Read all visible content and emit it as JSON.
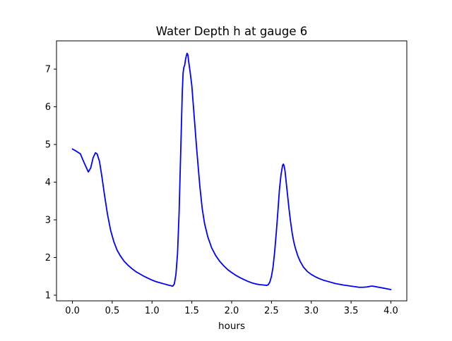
{
  "figure": {
    "background": "#ffffff"
  },
  "chart_data": {
    "type": "line",
    "title": "Water Depth h at gauge 6",
    "xlabel": "hours",
    "ylabel": "",
    "xlim": [
      -0.2,
      4.2
    ],
    "ylim": [
      0.85,
      7.75
    ],
    "xticks": [
      0.0,
      0.5,
      1.0,
      1.5,
      2.0,
      2.5,
      3.0,
      3.5,
      4.0
    ],
    "xtick_labels": [
      "0.0",
      "0.5",
      "1.0",
      "1.5",
      "2.0",
      "2.5",
      "3.0",
      "3.5",
      "4.0"
    ],
    "yticks": [
      1,
      2,
      3,
      4,
      5,
      6,
      7
    ],
    "ytick_labels": [
      "1",
      "2",
      "3",
      "4",
      "5",
      "6",
      "7"
    ],
    "grid": false,
    "legend": false,
    "series": [
      {
        "color": "#0000ff",
        "x": [
          0.0,
          0.05,
          0.1,
          0.15,
          0.2,
          0.23,
          0.26,
          0.29,
          0.31,
          0.34,
          0.37,
          0.4,
          0.44,
          0.48,
          0.52,
          0.56,
          0.6,
          0.65,
          0.7,
          0.75,
          0.8,
          0.85,
          0.9,
          0.95,
          1.0,
          1.05,
          1.1,
          1.15,
          1.2,
          1.24,
          1.26,
          1.28,
          1.3,
          1.32,
          1.34,
          1.36,
          1.38,
          1.39,
          1.4,
          1.41,
          1.42,
          1.43,
          1.44,
          1.45,
          1.46,
          1.47,
          1.48,
          1.5,
          1.52,
          1.54,
          1.56,
          1.58,
          1.6,
          1.63,
          1.66,
          1.7,
          1.75,
          1.8,
          1.85,
          1.9,
          1.95,
          2.0,
          2.05,
          2.1,
          2.15,
          2.2,
          2.25,
          2.3,
          2.35,
          2.4,
          2.44,
          2.46,
          2.48,
          2.5,
          2.52,
          2.54,
          2.56,
          2.58,
          2.6,
          2.62,
          2.64,
          2.65,
          2.66,
          2.67,
          2.68,
          2.7,
          2.72,
          2.74,
          2.76,
          2.78,
          2.8,
          2.83,
          2.86,
          2.9,
          2.95,
          3.0,
          3.05,
          3.1,
          3.15,
          3.2,
          3.3,
          3.4,
          3.5,
          3.6,
          3.65,
          3.7,
          3.73,
          3.75,
          3.77,
          3.8,
          3.85,
          3.9,
          3.95,
          4.0
        ],
        "y": [
          4.88,
          4.82,
          4.75,
          4.5,
          4.27,
          4.38,
          4.65,
          4.78,
          4.75,
          4.55,
          4.15,
          3.7,
          3.15,
          2.72,
          2.42,
          2.2,
          2.05,
          1.9,
          1.79,
          1.7,
          1.62,
          1.56,
          1.5,
          1.45,
          1.4,
          1.36,
          1.33,
          1.3,
          1.27,
          1.25,
          1.24,
          1.3,
          1.55,
          2.1,
          3.2,
          4.8,
          6.4,
          6.9,
          7.05,
          7.1,
          7.25,
          7.35,
          7.42,
          7.38,
          7.2,
          7.05,
          6.9,
          6.55,
          6.0,
          5.45,
          4.9,
          4.4,
          3.9,
          3.3,
          2.9,
          2.55,
          2.25,
          2.05,
          1.9,
          1.78,
          1.68,
          1.6,
          1.53,
          1.47,
          1.42,
          1.37,
          1.33,
          1.3,
          1.28,
          1.27,
          1.26,
          1.28,
          1.35,
          1.5,
          1.75,
          2.15,
          2.65,
          3.2,
          3.8,
          4.2,
          4.45,
          4.48,
          4.42,
          4.3,
          4.1,
          3.7,
          3.3,
          2.95,
          2.65,
          2.42,
          2.25,
          2.05,
          1.9,
          1.75,
          1.63,
          1.55,
          1.49,
          1.44,
          1.4,
          1.37,
          1.31,
          1.27,
          1.24,
          1.21,
          1.21,
          1.22,
          1.23,
          1.24,
          1.24,
          1.23,
          1.21,
          1.19,
          1.17,
          1.15
        ]
      }
    ]
  }
}
